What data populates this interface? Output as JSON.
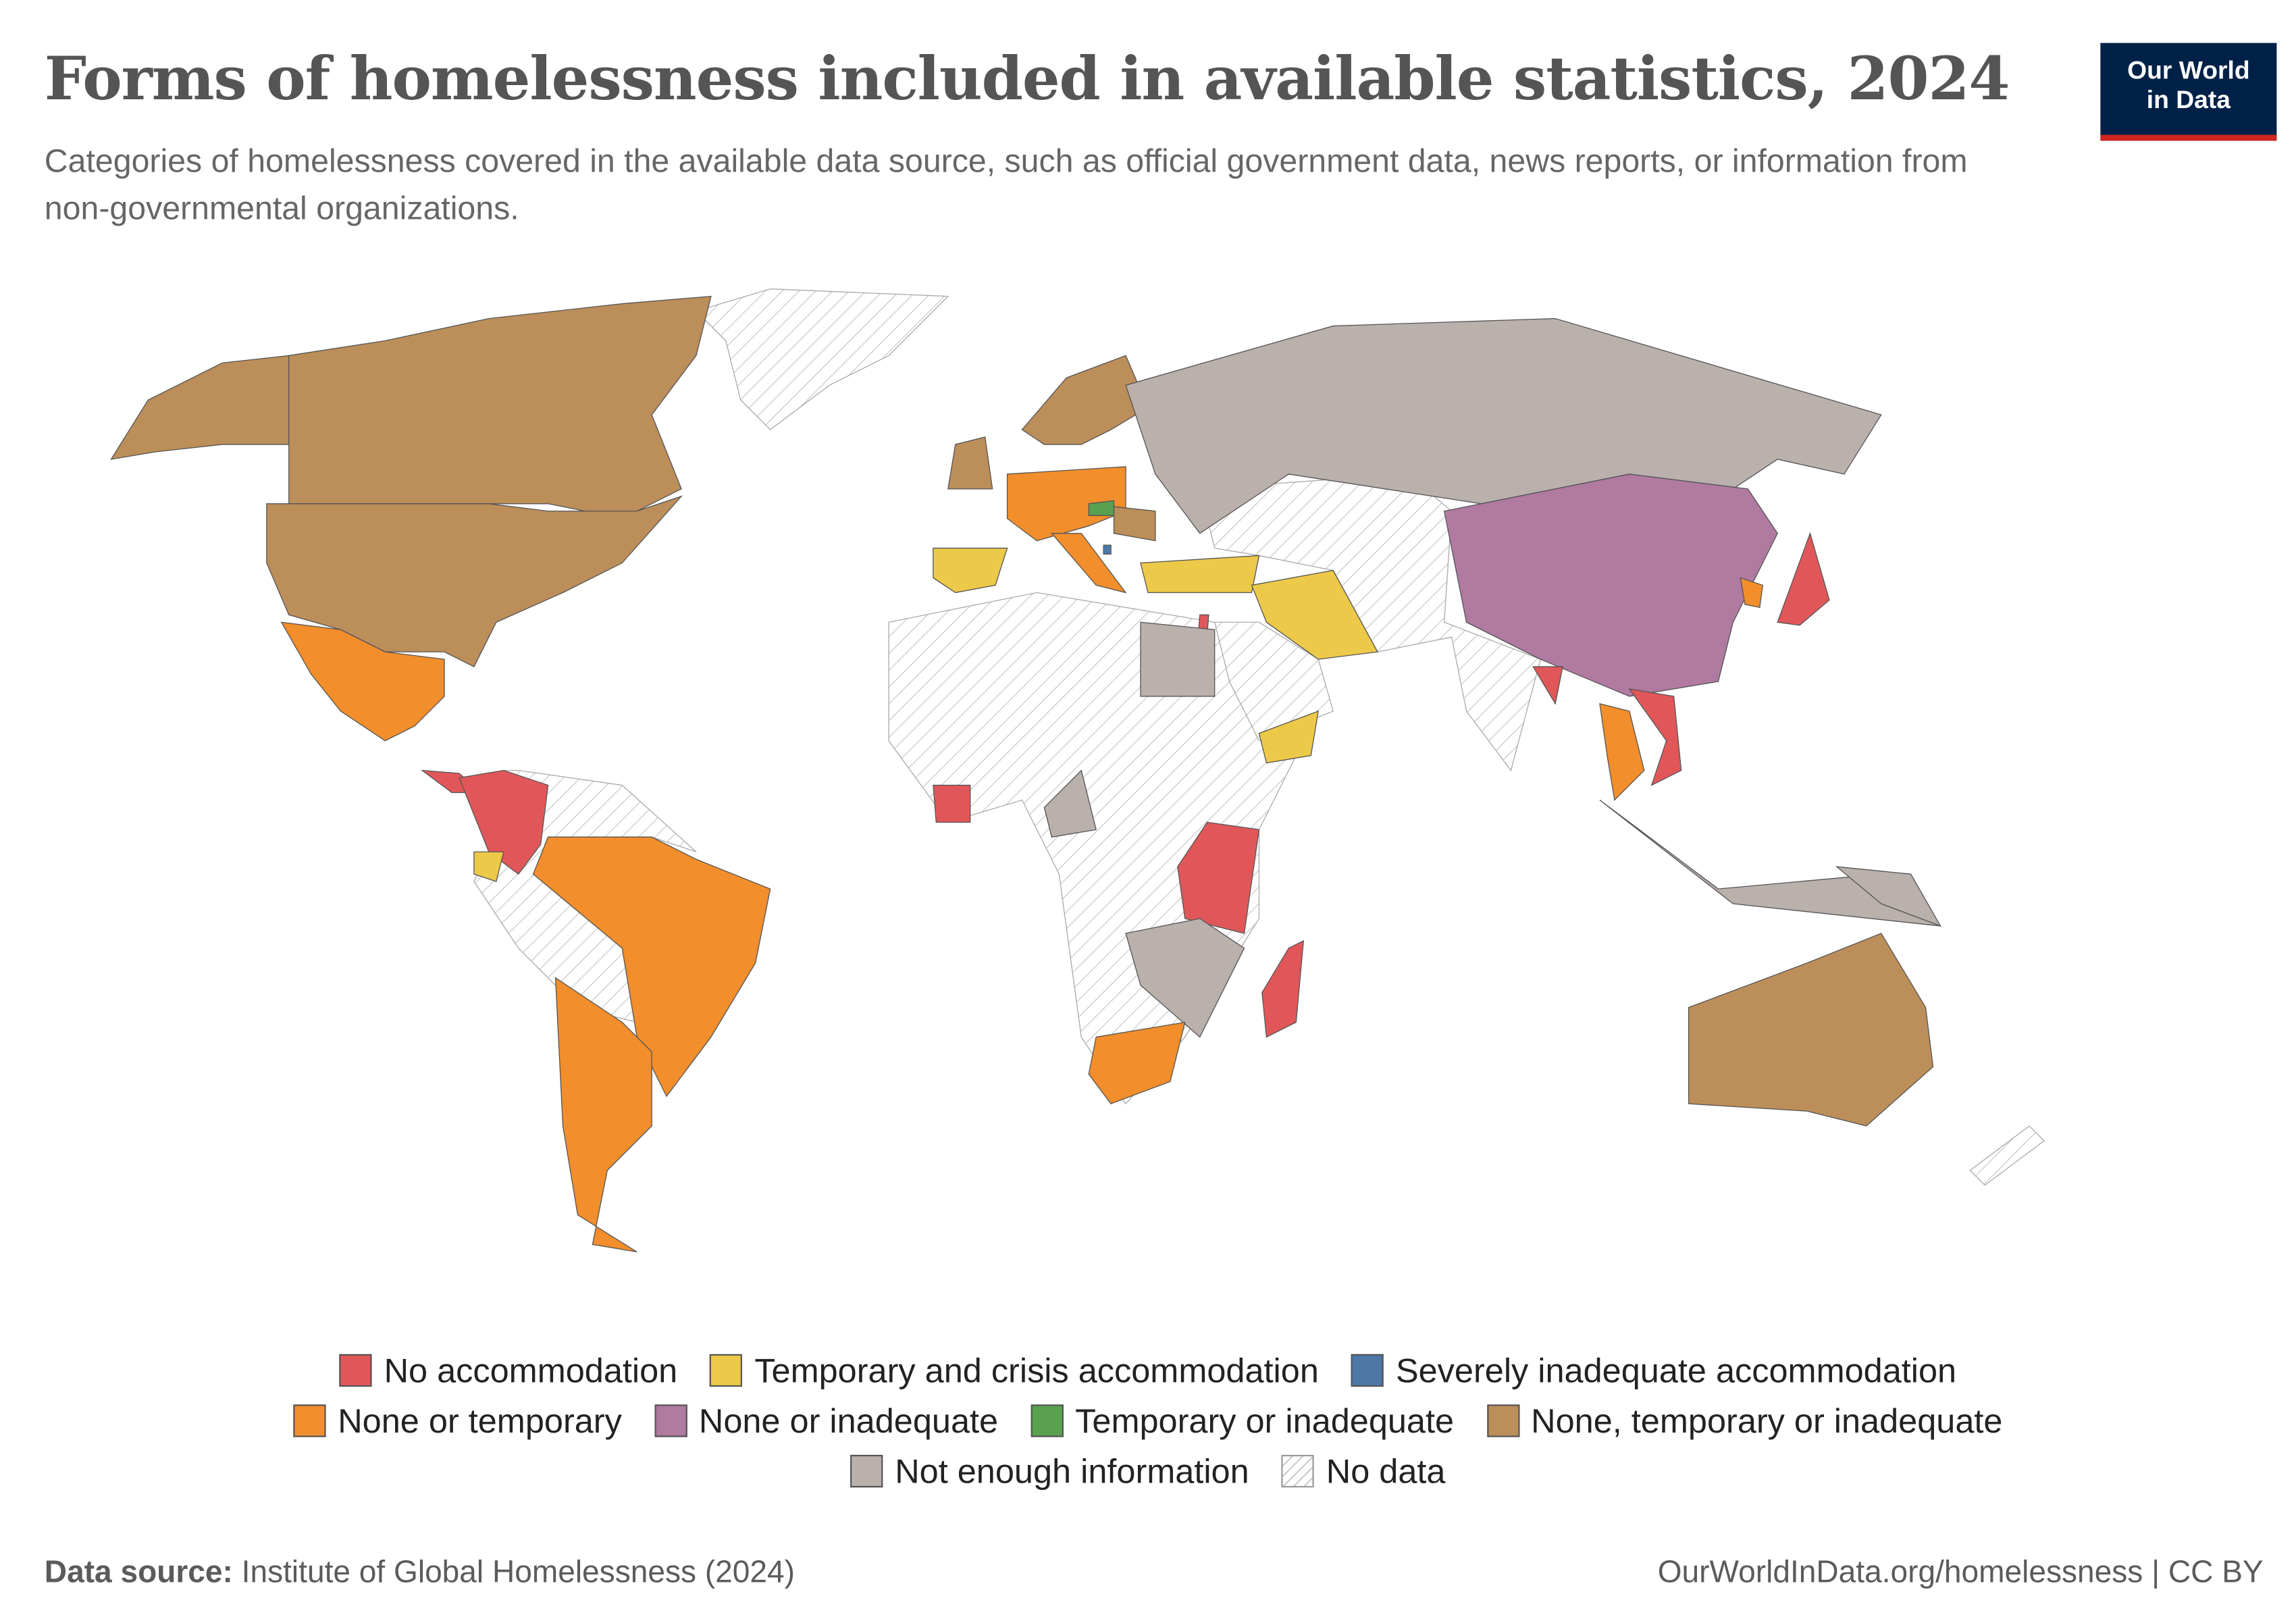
{
  "title": "Forms of homelessness included in available statistics, 2024",
  "subtitle": "Categories of homelessness covered in the available data source, such as official government data, news reports, or information from non-governmental organizations.",
  "logo": {
    "line1": "Our World",
    "line2": "in Data"
  },
  "legend": [
    {
      "label": "No accommodation",
      "color": "#E15759"
    },
    {
      "label": "Temporary and crisis accommodation",
      "color": "#EDC949"
    },
    {
      "label": "Severely inadequate accommodation",
      "color": "#4E79A7"
    },
    {
      "label": "None or temporary",
      "color": "#F28E2B"
    },
    {
      "label": "None or inadequate",
      "color": "#B07AA1"
    },
    {
      "label": "Temporary or inadequate",
      "color": "#59A14F"
    },
    {
      "label": "None, temporary or inadequate",
      "color": "#BC8E5A"
    },
    {
      "label": "Not enough information",
      "color": "#BAB0AC"
    },
    {
      "label": "No data",
      "color": "hatch"
    }
  ],
  "map_regions": {
    "No accommodation": [
      "Colombia",
      "Japan",
      "Myanmar",
      "Vietnam",
      "Ivory Coast",
      "Kenya",
      "Tanzania",
      "Madagascar",
      "Israel"
    ],
    "Temporary and crisis accommodation": [
      "Spain",
      "Turkey",
      "Iran",
      "Yemen",
      "Ecuador"
    ],
    "Severely inadequate accommodation": [
      "Montenegro"
    ],
    "None or temporary": [
      "Mexico",
      "Brazil",
      "Argentina",
      "Chile",
      "France",
      "Germany",
      "Poland",
      "Italy",
      "South Korea",
      "Thailand",
      "South Africa"
    ],
    "None or inadequate": [
      "China"
    ],
    "Temporary or inadequate": [
      "Hungary"
    ],
    "None, temporary or inadequate": [
      "United States",
      "Canada",
      "United Kingdom",
      "Sweden",
      "Norway",
      "Finland",
      "Australia",
      "Romania"
    ],
    "Not enough information": [
      "Russia",
      "Egypt",
      "Indonesia",
      "Papua New Guinea",
      "Zambia",
      "Mozambique",
      "Zimbabwe",
      "DR Congo"
    ]
  },
  "footer": {
    "source_label": "Data source:",
    "source": "Institute of Global Homelessness (2024)",
    "url": "OurWorldInData.org/homelessness | CC BY"
  }
}
